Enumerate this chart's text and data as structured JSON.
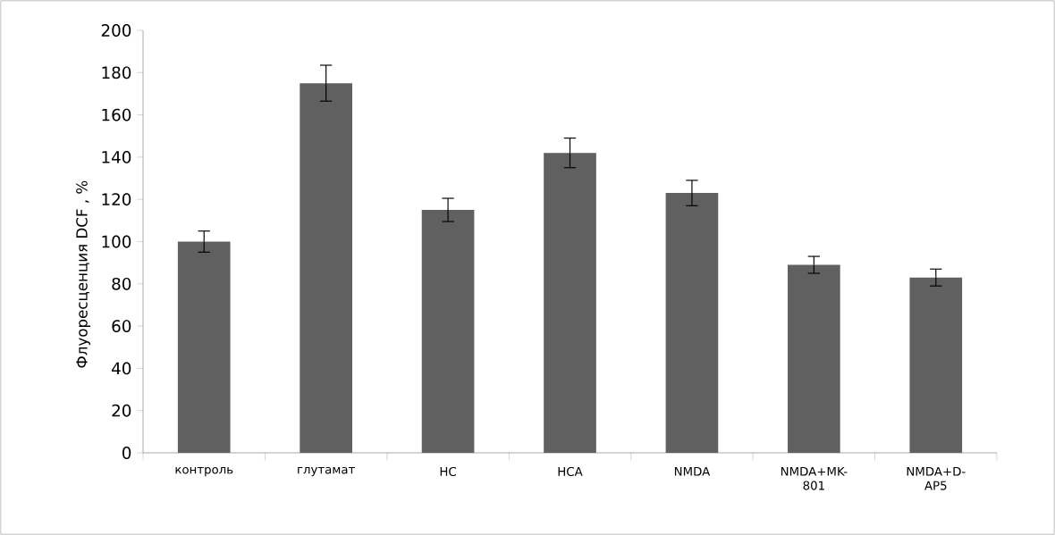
{
  "chart_data": {
    "type": "bar",
    "ylabel": "Флуоресценция      DCF , %",
    "categories": [
      "контроль",
      "глутамат",
      "HC",
      "HCA",
      "NMDA",
      "NMDA+MK-801",
      "NMDA+D-AP5"
    ],
    "values": [
      100,
      175,
      115,
      142,
      123,
      89,
      83
    ],
    "errors": [
      5,
      8.5,
      5.5,
      7,
      6,
      4,
      4
    ],
    "color": "#606060",
    "ylim": [
      0,
      200
    ],
    "yticks": [
      0,
      20,
      40,
      60,
      80,
      100,
      120,
      140,
      160,
      180,
      200
    ],
    "grid": false
  }
}
